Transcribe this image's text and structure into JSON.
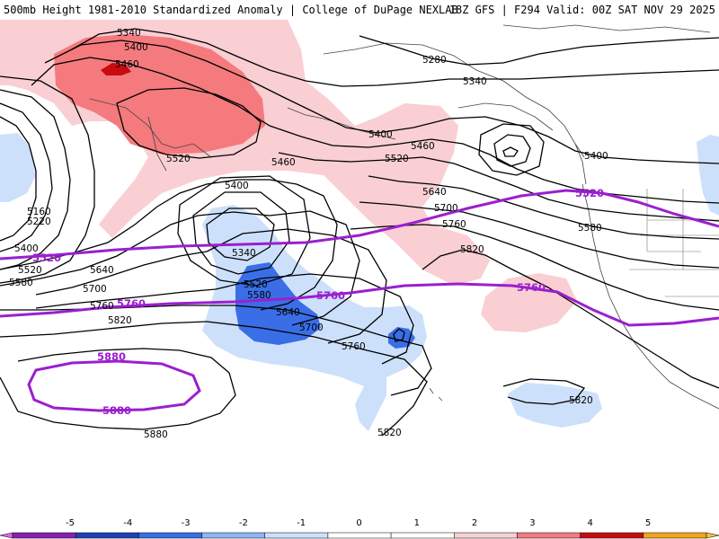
{
  "header": {
    "title_left": "500mb Height 1981-2010 Standardized Anomaly | College of DuPage NEXLAB",
    "title_right": "18Z GFS | F294 Valid: 00Z SAT NOV 29 2025"
  },
  "contour_labels": {
    "h5340a": "5340",
    "h5400a": "5400",
    "h5460a": "5460",
    "h5280": "5280",
    "h5340b": "5340",
    "h5520a": "5520",
    "h5400b": "5400",
    "h5460b": "5460",
    "h5520b": "5520",
    "h5400c": "5400",
    "h5460c": "5460",
    "h5400d": "5400",
    "h5640a": "5640",
    "h5700a": "5700",
    "h5760a": "5760",
    "h5580a": "5580",
    "h5820a": "5820",
    "h5160": "5160",
    "h5220": "5220",
    "h5400e": "5400",
    "h5520c": "5520",
    "h5580b": "5580",
    "h5640b": "5640",
    "h5700b": "5700",
    "h5760b": "5760",
    "h5820b": "5820",
    "h5340c": "5340",
    "h5520d": "5520",
    "h5580c": "5580",
    "h5640c": "5640",
    "h5700c": "5700",
    "h5760c": "5760",
    "h5880": "5880",
    "h5820c": "5820",
    "h5820d": "5820"
  },
  "highlight_labels": {
    "p5520a": "5520",
    "p5520b": "5520",
    "p5760a": "5760",
    "p5760b": "5760",
    "p5760c": "5760",
    "p5880a": "5880",
    "p5880b": "5880"
  },
  "colorbar": {
    "ticks": [
      "-5",
      "-4",
      "-3",
      "-2",
      "-1",
      "0",
      "1",
      "2",
      "3",
      "4",
      "5"
    ],
    "colors": [
      "#8a1fb0",
      "#1f3fb8",
      "#3a6ee6",
      "#8fb4f5",
      "#cde0fb",
      "#ffffff",
      "#ffffff",
      "#f9cfd3",
      "#f47a7e",
      "#c80a12",
      "#f5a21c"
    ]
  },
  "anomaly_colors": {
    "pos_weak": "#f9cfd3",
    "pos_mod": "#f47a7e",
    "pos_strong": "#c80a12",
    "neg_weak": "#cde0fb",
    "neg_mod": "#3a6ee6"
  },
  "highlight_color": "#9b1fcf"
}
